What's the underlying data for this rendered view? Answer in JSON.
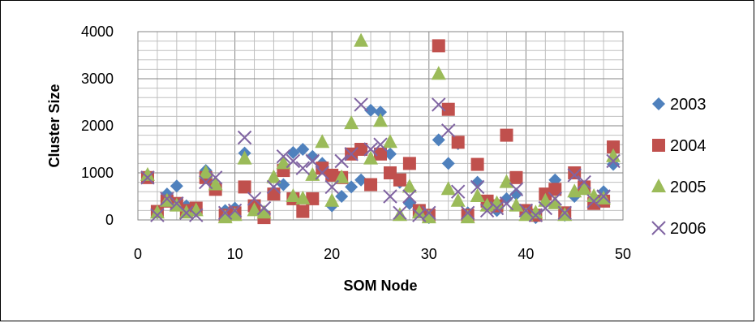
{
  "chart_data": {
    "type": "scatter",
    "title": "",
    "xlabel": "SOM Node",
    "ylabel": "Cluster Size",
    "xlim": [
      0,
      50
    ],
    "ylim": [
      0,
      4000
    ],
    "x_ticks": [
      0,
      10,
      20,
      30,
      40,
      50
    ],
    "y_ticks": [
      0,
      1000,
      2000,
      3000,
      4000
    ],
    "grid": true,
    "legend_position": "right",
    "series": [
      {
        "name": "2003",
        "marker": "diamond",
        "color": "#4F81BD",
        "points": [
          [
            1,
            950
          ],
          [
            2,
            150
          ],
          [
            3,
            550
          ],
          [
            4,
            720
          ],
          [
            5,
            300
          ],
          [
            6,
            200
          ],
          [
            7,
            1050
          ],
          [
            8,
            700
          ],
          [
            9,
            200
          ],
          [
            10,
            250
          ],
          [
            11,
            1420
          ],
          [
            12,
            300
          ],
          [
            13,
            150
          ],
          [
            14,
            600
          ],
          [
            15,
            750
          ],
          [
            16,
            1430
          ],
          [
            17,
            1500
          ],
          [
            18,
            1350
          ],
          [
            19,
            1200
          ],
          [
            20,
            300
          ],
          [
            21,
            500
          ],
          [
            22,
            700
          ],
          [
            23,
            850
          ],
          [
            24,
            2330
          ],
          [
            25,
            2290
          ],
          [
            26,
            1400
          ],
          [
            27,
            800
          ],
          [
            28,
            350
          ],
          [
            29,
            200
          ],
          [
            30,
            50
          ],
          [
            31,
            1700
          ],
          [
            32,
            1200
          ],
          [
            33,
            1620
          ],
          [
            34,
            150
          ],
          [
            35,
            800
          ],
          [
            36,
            350
          ],
          [
            37,
            200
          ],
          [
            38,
            450
          ],
          [
            39,
            550
          ],
          [
            40,
            150
          ],
          [
            41,
            50
          ],
          [
            42,
            500
          ],
          [
            43,
            850
          ],
          [
            44,
            100
          ],
          [
            45,
            500
          ],
          [
            46,
            700
          ],
          [
            47,
            450
          ],
          [
            48,
            600
          ],
          [
            49,
            1180
          ]
        ]
      },
      {
        "name": "2004",
        "marker": "square",
        "color": "#C0504D",
        "points": [
          [
            1,
            900
          ],
          [
            2,
            180
          ],
          [
            3,
            400
          ],
          [
            4,
            350
          ],
          [
            5,
            200
          ],
          [
            6,
            250
          ],
          [
            7,
            900
          ],
          [
            8,
            650
          ],
          [
            9,
            100
          ],
          [
            10,
            150
          ],
          [
            11,
            700
          ],
          [
            12,
            300
          ],
          [
            13,
            50
          ],
          [
            14,
            550
          ],
          [
            15,
            1050
          ],
          [
            16,
            450
          ],
          [
            17,
            180
          ],
          [
            18,
            450
          ],
          [
            19,
            1100
          ],
          [
            20,
            950
          ],
          [
            21,
            900
          ],
          [
            22,
            1400
          ],
          [
            23,
            1500
          ],
          [
            24,
            750
          ],
          [
            25,
            1400
          ],
          [
            26,
            1000
          ],
          [
            27,
            850
          ],
          [
            28,
            1200
          ],
          [
            29,
            200
          ],
          [
            30,
            100
          ],
          [
            31,
            3700
          ],
          [
            32,
            2350
          ],
          [
            33,
            1650
          ],
          [
            34,
            100
          ],
          [
            35,
            1180
          ],
          [
            36,
            400
          ],
          [
            37,
            300
          ],
          [
            38,
            1800
          ],
          [
            39,
            900
          ],
          [
            40,
            200
          ],
          [
            41,
            100
          ],
          [
            42,
            550
          ],
          [
            43,
            650
          ],
          [
            44,
            150
          ],
          [
            45,
            1000
          ],
          [
            46,
            700
          ],
          [
            47,
            350
          ],
          [
            48,
            400
          ],
          [
            49,
            1550
          ]
        ]
      },
      {
        "name": "2005",
        "marker": "triangle",
        "color": "#9BBB59",
        "points": [
          [
            1,
            950
          ],
          [
            2,
            150
          ],
          [
            3,
            400
          ],
          [
            4,
            300
          ],
          [
            5,
            150
          ],
          [
            6,
            200
          ],
          [
            7,
            1000
          ],
          [
            8,
            750
          ],
          [
            9,
            50
          ],
          [
            10,
            100
          ],
          [
            11,
            1300
          ],
          [
            12,
            200
          ],
          [
            13,
            150
          ],
          [
            14,
            900
          ],
          [
            15,
            1200
          ],
          [
            16,
            500
          ],
          [
            17,
            450
          ],
          [
            18,
            950
          ],
          [
            19,
            1650
          ],
          [
            20,
            400
          ],
          [
            21,
            900
          ],
          [
            22,
            2050
          ],
          [
            23,
            3800
          ],
          [
            24,
            1300
          ],
          [
            25,
            2100
          ],
          [
            26,
            1650
          ],
          [
            27,
            100
          ],
          [
            28,
            700
          ],
          [
            29,
            150
          ],
          [
            30,
            50
          ],
          [
            31,
            3100
          ],
          [
            32,
            650
          ],
          [
            33,
            400
          ],
          [
            34,
            50
          ],
          [
            35,
            500
          ],
          [
            36,
            300
          ],
          [
            37,
            350
          ],
          [
            38,
            800
          ],
          [
            39,
            300
          ],
          [
            40,
            100
          ],
          [
            41,
            150
          ],
          [
            42,
            400
          ],
          [
            43,
            350
          ],
          [
            44,
            100
          ],
          [
            45,
            600
          ],
          [
            46,
            650
          ],
          [
            47,
            500
          ],
          [
            48,
            450
          ],
          [
            49,
            1350
          ]
        ]
      },
      {
        "name": "2006",
        "marker": "x",
        "color": "#8064A2",
        "points": [
          [
            1,
            900
          ],
          [
            2,
            100
          ],
          [
            3,
            450
          ],
          [
            4,
            350
          ],
          [
            5,
            150
          ],
          [
            6,
            100
          ],
          [
            7,
            800
          ],
          [
            8,
            900
          ],
          [
            9,
            150
          ],
          [
            10,
            200
          ],
          [
            11,
            1750
          ],
          [
            12,
            450
          ],
          [
            13,
            250
          ],
          [
            14,
            700
          ],
          [
            15,
            1350
          ],
          [
            16,
            1250
          ],
          [
            17,
            1100
          ],
          [
            18,
            1250
          ],
          [
            19,
            1000
          ],
          [
            20,
            700
          ],
          [
            21,
            1250
          ],
          [
            22,
            1400
          ],
          [
            23,
            2450
          ],
          [
            24,
            1500
          ],
          [
            25,
            1600
          ],
          [
            26,
            500
          ],
          [
            27,
            150
          ],
          [
            28,
            500
          ],
          [
            29,
            100
          ],
          [
            30,
            150
          ],
          [
            31,
            2450
          ],
          [
            32,
            1900
          ],
          [
            33,
            600
          ],
          [
            34,
            150
          ],
          [
            35,
            700
          ],
          [
            36,
            200
          ],
          [
            37,
            250
          ],
          [
            38,
            350
          ],
          [
            39,
            650
          ],
          [
            40,
            200
          ],
          [
            41,
            100
          ],
          [
            42,
            250
          ],
          [
            43,
            450
          ],
          [
            44,
            150
          ],
          [
            45,
            950
          ],
          [
            46,
            800
          ],
          [
            47,
            400
          ],
          [
            48,
            500
          ],
          [
            49,
            1250
          ]
        ]
      }
    ]
  }
}
